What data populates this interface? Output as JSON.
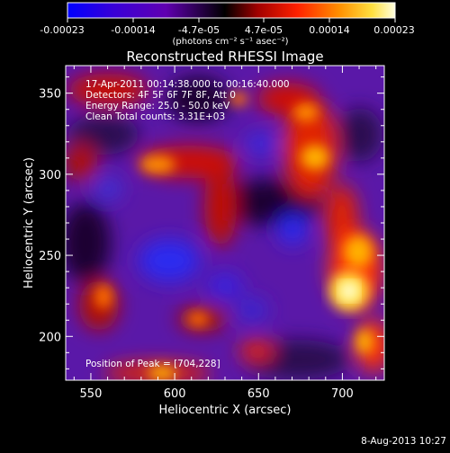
{
  "colorbar": {
    "tick_labels": [
      "-0.00023",
      "-0.00014",
      "-4.7e-05",
      "4.7e-05",
      "0.00014",
      "0.00023"
    ],
    "units_text": "(photons cm⁻² s⁻¹ asec⁻²)",
    "colors": [
      "#0000ff",
      "#3800d8",
      "#6000b0",
      "#000000",
      "#a00000",
      "#ff2000",
      "#ff9000",
      "#ffe040",
      "#ffffe0"
    ]
  },
  "plot": {
    "title": "Reconstructed RHESSI Image",
    "x_label": "Heliocentric X (arcsec)",
    "y_label": "Heliocentric Y (arcsec)",
    "x_ticks": [
      "550",
      "600",
      "650",
      "700"
    ],
    "y_ticks": [
      "200",
      "250",
      "300",
      "350"
    ],
    "info_lines": [
      "17-Apr-2011 00:14:38.000 to 00:16:40.000",
      "Detectors: 4F 5F 6F 7F 8F, Att 0",
      "Energy Range: 25.0 - 50.0 keV",
      "Clean    Total counts: 3.31E+03"
    ],
    "peak_text": "Position of Peak = [704,228]",
    "x_range": [
      535,
      725
    ],
    "y_range": [
      173,
      367
    ],
    "peak_position": [
      704,
      228
    ]
  },
  "footer": {
    "date": "8-Aug-2013 10:27"
  }
}
